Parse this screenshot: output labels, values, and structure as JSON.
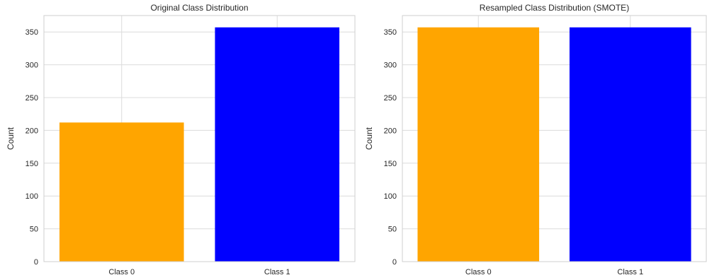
{
  "chart_data": [
    {
      "type": "bar",
      "title": "Original Class Distribution",
      "xlabel": "",
      "ylabel": "Count",
      "categories": [
        "Class 0",
        "Class 1"
      ],
      "values": [
        212,
        357
      ],
      "colors": [
        "#FFA500",
        "#0000FF"
      ],
      "ylim": [
        0,
        375
      ],
      "yticks": [
        0,
        50,
        100,
        150,
        200,
        250,
        300,
        350
      ],
      "grid": true
    },
    {
      "type": "bar",
      "title": "Resampled Class Distribution (SMOTE)",
      "xlabel": "",
      "ylabel": "Count",
      "categories": [
        "Class 0",
        "Class 1"
      ],
      "values": [
        357,
        357
      ],
      "colors": [
        "#FFA500",
        "#0000FF"
      ],
      "ylim": [
        0,
        375
      ],
      "yticks": [
        0,
        50,
        100,
        150,
        200,
        250,
        300,
        350
      ],
      "grid": true
    }
  ]
}
